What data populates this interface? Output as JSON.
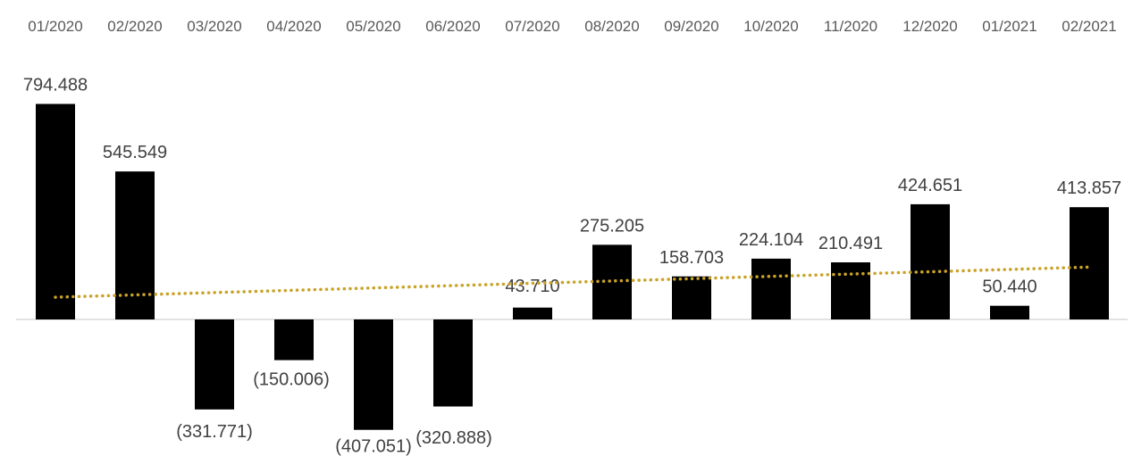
{
  "chart_data": {
    "type": "bar",
    "categories": [
      "01/2020",
      "02/2020",
      "03/2020",
      "04/2020",
      "05/2020",
      "06/2020",
      "07/2020",
      "08/2020",
      "09/2020",
      "10/2020",
      "11/2020",
      "12/2020",
      "01/2021",
      "02/2021"
    ],
    "values": [
      794.488,
      545.549,
      -331.771,
      -150.006,
      -407.051,
      -320.888,
      43.71,
      275.205,
      158.703,
      224.104,
      210.491,
      424.651,
      50.44,
      413.857
    ],
    "value_labels": [
      "794.488",
      "545.549",
      "(331.771)",
      "(150.006)",
      "(407.051)",
      "(320.888)",
      "43.710",
      "275.205",
      "158.703",
      "224.104",
      "210.491",
      "424.651",
      "50.440",
      "413.857"
    ],
    "trendline": {
      "type": "linear",
      "style": "dotted",
      "start_value": 82,
      "end_value": 193
    },
    "colors": {
      "bar": "#000000",
      "trendline": "#C9A227",
      "axis": "#D9D9D9",
      "label": "#404040",
      "category_label": "#595959"
    },
    "legend": "none",
    "grid": false,
    "category_axis_position": "top"
  }
}
